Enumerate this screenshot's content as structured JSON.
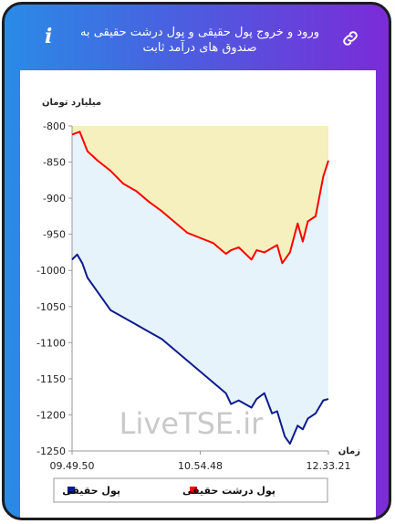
{
  "header": {
    "title": "ورود و خروج پول حقیقی و پول درشت حقیقی به صندوق های درآمد ثابت"
  },
  "chart_data": {
    "type": "line",
    "ylabel": "میلیارد تومان",
    "xlabel": "زمان",
    "ylim": [
      -1250,
      -800
    ],
    "yticks": [
      -800,
      -850,
      -900,
      -950,
      -1000,
      -1050,
      -1100,
      -1150,
      -1200,
      -1250
    ],
    "xticks": [
      "09.49.50",
      "10.54.48",
      "12.33.21"
    ],
    "watermark": "LiveTSE.ir",
    "legend_position": "bottom",
    "series": [
      {
        "name": "پول درشت حقیقی",
        "color": "#ff0000",
        "fill": "#f5f0bd",
        "x": [
          0,
          3,
          6,
          10,
          15,
          20,
          25,
          30,
          35,
          40,
          45,
          50,
          55,
          60,
          62,
          65,
          70,
          72,
          75,
          80,
          82,
          85,
          88,
          90,
          92,
          95,
          98,
          100
        ],
        "values": [
          -812,
          -808,
          -835,
          -848,
          -862,
          -880,
          -890,
          -905,
          -918,
          -933,
          -948,
          -955,
          -962,
          -977,
          -972,
          -968,
          -985,
          -972,
          -975,
          -965,
          -990,
          -975,
          -935,
          -960,
          -932,
          -925,
          -870,
          -848
        ]
      },
      {
        "name": "پول حقیقی",
        "color": "#0d1b8c",
        "fill": "#e6f3fb",
        "x": [
          0,
          2,
          4,
          6,
          10,
          15,
          20,
          25,
          30,
          35,
          40,
          45,
          50,
          55,
          60,
          62,
          65,
          70,
          72,
          75,
          78,
          80,
          83,
          85,
          88,
          90,
          92,
          95,
          98,
          100
        ],
        "values": [
          -985,
          -978,
          -990,
          -1010,
          -1030,
          -1055,
          -1065,
          -1075,
          -1085,
          -1095,
          -1110,
          -1125,
          -1140,
          -1155,
          -1170,
          -1185,
          -1180,
          -1190,
          -1178,
          -1170,
          -1198,
          -1195,
          -1230,
          -1240,
          -1215,
          -1220,
          -1205,
          -1198,
          -1180,
          -1178
        ]
      }
    ]
  }
}
